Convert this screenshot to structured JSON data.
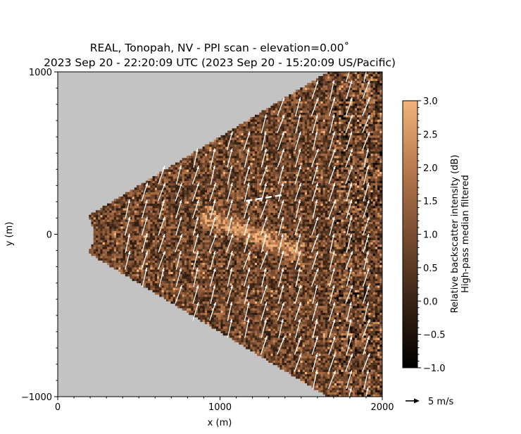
{
  "chart_data": {
    "type": "heatmap",
    "title_line1": "REAL, Tonopah, NV - PPI scan - elevation=0.00˚",
    "title_line2": "2023 Sep 20 - 22:20:09 UTC (2023 Sep 20 - 15:20:09 US/Pacific)",
    "xlabel": "x (m)",
    "ylabel": "y (m)",
    "xlim": [
      0,
      2000
    ],
    "ylim": [
      -1000,
      1000
    ],
    "x_ticks": [
      0,
      1000,
      2000
    ],
    "x_tick_labels": [
      "0",
      "1000",
      "2000"
    ],
    "y_ticks": [
      -1000,
      0,
      1000
    ],
    "y_tick_labels": [
      "−1000",
      "0",
      "1000"
    ],
    "scan": {
      "inner_range_m": 220,
      "half_angle_deg": 31,
      "background": "#c3c3c3"
    },
    "colorbar": {
      "label_line1": "Relative backscatter intensity (dB)",
      "label_line2": "High-pass median filtered",
      "min": -1.0,
      "max": 3.0,
      "ticks": [
        3.0,
        2.5,
        2.0,
        1.5,
        1.0,
        0.5,
        0.0,
        -0.5,
        -1.0
      ],
      "tick_labels": [
        "3.0",
        "2.5",
        "2.0",
        "1.5",
        "1.0",
        "0.5",
        "0.0",
        "−0.5",
        "−1.0"
      ],
      "colormap": "copper",
      "colors": [
        "#000000",
        "#3a2414",
        "#7a4d31",
        "#b97a4e",
        "#f2b47b"
      ]
    },
    "wind_vectors": {
      "direction_deg_from_north": 17,
      "typical_speed_ms": 7
    },
    "reference_arrow": {
      "label": "5 m/s",
      "speed_ms": 5
    },
    "annotation_line": {
      "x": [
        1160,
        1400
      ],
      "y": [
        205,
        245
      ],
      "style": "dashed"
    }
  }
}
